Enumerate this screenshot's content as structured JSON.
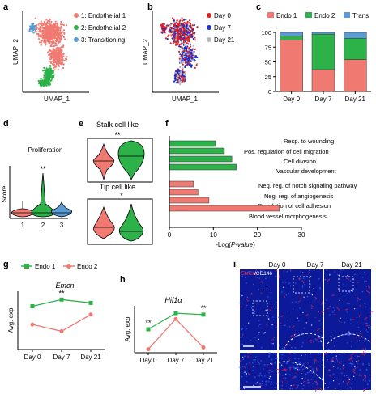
{
  "colors": {
    "endo1": "#f07a72",
    "endo2": "#2db24a",
    "trans": "#5b9bd5",
    "day0": "#e02020",
    "day7": "#1f2fcf",
    "day21": "#b8b8b8",
    "micro_bg": "#0c1a9a",
    "micro_red": "#e0203a"
  },
  "panels": {
    "a": {
      "letter": "a",
      "xlabel": "UMAP_1",
      "ylabel": "UMAP_2",
      "legend": [
        "1: Endothelial 1",
        "2: Endothelial 2",
        "3: Transitioning"
      ]
    },
    "b": {
      "letter": "b",
      "xlabel": "UMAP_1",
      "ylabel": "UMAP_2",
      "legend": [
        "Day 0",
        "Day 7",
        "Day 21"
      ]
    },
    "c": {
      "letter": "c",
      "legend": [
        "Endo 1",
        "Endo 2",
        "Trans"
      ]
    },
    "d": {
      "letter": "d",
      "title": "Proliferation",
      "ylabel": "Score",
      "sig": "**",
      "categories": [
        "1",
        "2",
        "3"
      ]
    },
    "e": {
      "letter": "e",
      "top_title": "Stalk cell like",
      "top_sig": "**",
      "bottom_title": "Tip cell like",
      "bottom_sig": "*"
    },
    "f": {
      "letter": "f"
    },
    "g": {
      "letter": "g",
      "legend": [
        "Endo 1",
        "Endo 2"
      ],
      "gene": "Emcn",
      "ylabel": "Avg. exp",
      "sig": "**"
    },
    "h": {
      "letter": "h",
      "gene": "Hif1α",
      "ylabel": "Avg. exp",
      "sig_left": "**",
      "sig_right": "**"
    },
    "i": {
      "letter": "i",
      "stain_red": "EMCN",
      "stain_white": "/CD146",
      "days": [
        "Day 0",
        "Day 7",
        "Day 21"
      ]
    }
  },
  "chart_data": [
    {
      "panel": "c",
      "type": "bar",
      "stacked": true,
      "categories": [
        "Day 0",
        "Day 7",
        "Day 21"
      ],
      "series": [
        {
          "name": "Endo 1",
          "values": [
            87,
            37,
            54
          ]
        },
        {
          "name": "Endo 2",
          "values": [
            7,
            60,
            36
          ]
        },
        {
          "name": "Trans",
          "values": [
            6,
            3,
            10
          ]
        }
      ],
      "ylim": [
        0,
        100
      ],
      "yticks": [
        0,
        25,
        50,
        75,
        100
      ]
    },
    {
      "panel": "f",
      "type": "bar",
      "orientation": "horizontal",
      "xlabel": "-Log(P-value)",
      "xlim": [
        0,
        30
      ],
      "xticks": [
        0,
        10,
        20,
        30
      ],
      "series": [
        {
          "name": "Endo 2",
          "categories": [
            "Resp. to wounding",
            "Pos. regulation of cell migration",
            "Cell division",
            "Vascular development"
          ],
          "values": [
            10.5,
            12.5,
            14.2,
            15.2
          ]
        },
        {
          "name": "Endo 1",
          "categories": [
            "Neg. reg. of notch signaling pathway",
            "Neg. reg. of angiogenesis",
            "Regulation of cell adhesion",
            "Blood vessel morphogenesis"
          ],
          "values": [
            5.5,
            6.5,
            9.0,
            25.0
          ]
        }
      ]
    },
    {
      "panel": "g",
      "type": "line",
      "title": "Emcn",
      "ylabel": "Avg. exp",
      "categories": [
        "Day 0",
        "Day 7",
        "Day 21"
      ],
      "series": [
        {
          "name": "Endo 1",
          "values": [
            1.82,
            1.9,
            1.86
          ]
        },
        {
          "name": "Endo 2",
          "values": [
            1.6,
            1.52,
            1.72
          ]
        }
      ],
      "ylim": [
        1.3,
        2.0
      ]
    },
    {
      "panel": "h",
      "type": "line",
      "title": "Hif1α",
      "ylabel": "Avg. exp",
      "categories": [
        "Day 0",
        "Day 7",
        "Day 21"
      ],
      "series": [
        {
          "name": "Endo 1",
          "values": [
            0.8,
            1.35,
            1.3
          ]
        },
        {
          "name": "Endo 2",
          "values": [
            0.12,
            1.15,
            0.18
          ]
        }
      ],
      "ylim": [
        0.0,
        1.6
      ]
    }
  ]
}
